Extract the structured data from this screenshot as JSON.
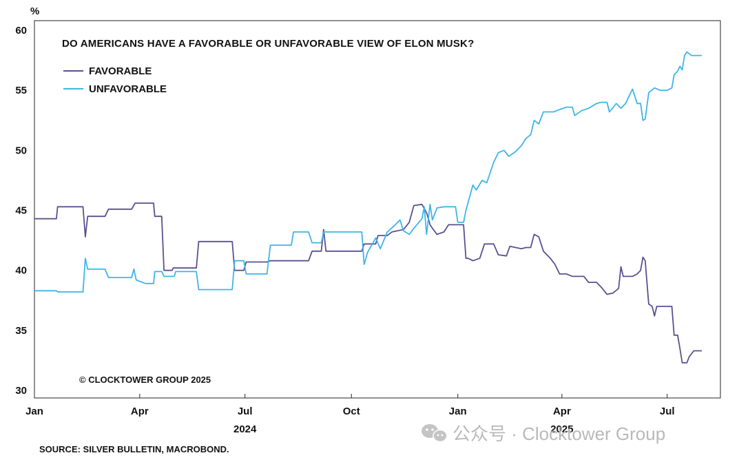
{
  "chart_data": {
    "type": "line",
    "title": "DO AMERICANS HAVE A FAVORABLE OR UNFAVORABLE VIEW OF ELON MUSK?",
    "ylabel": "%",
    "ylim": [
      30,
      60
    ],
    "y_ticks": [
      30,
      35,
      40,
      45,
      50,
      55,
      60
    ],
    "x_ticks": [
      {
        "label": "Jan",
        "date": "2024-01-01"
      },
      {
        "label": "Apr",
        "date": "2024-04-01"
      },
      {
        "label": "Jul",
        "date": "2024-07-01"
      },
      {
        "label": "Oct",
        "date": "2024-10-01"
      },
      {
        "label": "Jan",
        "date": "2025-01-01"
      },
      {
        "label": "Apr",
        "date": "2025-04-01"
      },
      {
        "label": "Jul",
        "date": "2025-07-01"
      }
    ],
    "year_labels": [
      {
        "label": "2024",
        "date": "2024-07-01"
      },
      {
        "label": "2025",
        "date": "2025-04-01"
      }
    ],
    "xlim": [
      "2024-01-01",
      "2025-08-16"
    ],
    "grid": false,
    "legend_position": "top-left",
    "note": "© CLOCKTOWER GROUP 2025",
    "source": "SOURCE: SILVER BULLETIN, MACROBOND.",
    "series": [
      {
        "name": "FAVORABLE",
        "color": "#5b4f8f",
        "points": [
          [
            "2024-01-01",
            44.3
          ],
          [
            "2024-01-20",
            44.3
          ],
          [
            "2024-01-21",
            45.3
          ],
          [
            "2024-02-12",
            45.3
          ],
          [
            "2024-02-14",
            42.8
          ],
          [
            "2024-02-16",
            44.5
          ],
          [
            "2024-03-02",
            44.5
          ],
          [
            "2024-03-05",
            45.1
          ],
          [
            "2024-03-25",
            45.1
          ],
          [
            "2024-03-28",
            45.6
          ],
          [
            "2024-04-13",
            45.6
          ],
          [
            "2024-04-14",
            44.5
          ],
          [
            "2024-04-20",
            44.5
          ],
          [
            "2024-04-22",
            40.0
          ],
          [
            "2024-04-29",
            40.0
          ],
          [
            "2024-04-30",
            40.2
          ],
          [
            "2024-05-20",
            40.2
          ],
          [
            "2024-05-22",
            42.4
          ],
          [
            "2024-06-20",
            42.4
          ],
          [
            "2024-06-22",
            40.0
          ],
          [
            "2024-06-30",
            40.0
          ],
          [
            "2024-07-02",
            40.7
          ],
          [
            "2024-07-20",
            40.7
          ],
          [
            "2024-07-23",
            40.8
          ],
          [
            "2024-08-10",
            40.8
          ],
          [
            "2024-08-12",
            40.8
          ],
          [
            "2024-08-25",
            40.8
          ],
          [
            "2024-08-28",
            41.6
          ],
          [
            "2024-09-05",
            41.6
          ],
          [
            "2024-09-07",
            43.4
          ],
          [
            "2024-09-09",
            41.6
          ],
          [
            "2024-10-10",
            41.6
          ],
          [
            "2024-10-12",
            42.2
          ],
          [
            "2024-10-22",
            42.2
          ],
          [
            "2024-10-24",
            42.9
          ],
          [
            "2024-11-01",
            42.9
          ],
          [
            "2024-11-05",
            43.2
          ],
          [
            "2024-11-15",
            43.4
          ],
          [
            "2024-11-20",
            44.0
          ],
          [
            "2024-11-24",
            45.4
          ],
          [
            "2024-12-01",
            45.5
          ],
          [
            "2024-12-05",
            44.8
          ],
          [
            "2024-12-08",
            43.8
          ],
          [
            "2024-12-10",
            43.5
          ],
          [
            "2024-12-14",
            43.0
          ],
          [
            "2024-12-20",
            43.2
          ],
          [
            "2024-12-24",
            43.8
          ],
          [
            "2024-12-30",
            43.8
          ],
          [
            "2025-01-01",
            43.8
          ],
          [
            "2025-01-06",
            43.8
          ],
          [
            "2025-01-08",
            41.0
          ],
          [
            "2025-01-10",
            41.0
          ],
          [
            "2025-01-14",
            40.8
          ],
          [
            "2025-01-20",
            41.0
          ],
          [
            "2025-01-24",
            42.2
          ],
          [
            "2025-02-01",
            42.2
          ],
          [
            "2025-02-05",
            41.3
          ],
          [
            "2025-02-12",
            41.2
          ],
          [
            "2025-02-15",
            42.0
          ],
          [
            "2025-02-25",
            41.8
          ],
          [
            "2025-03-01",
            41.9
          ],
          [
            "2025-03-05",
            41.9
          ],
          [
            "2025-03-08",
            43.0
          ],
          [
            "2025-03-12",
            42.8
          ],
          [
            "2025-03-16",
            41.6
          ],
          [
            "2025-03-22",
            41.0
          ],
          [
            "2025-03-26",
            40.5
          ],
          [
            "2025-03-30",
            39.7
          ],
          [
            "2025-04-05",
            39.7
          ],
          [
            "2025-04-10",
            39.5
          ],
          [
            "2025-04-20",
            39.5
          ],
          [
            "2025-04-24",
            39.0
          ],
          [
            "2025-05-01",
            39.0
          ],
          [
            "2025-05-05",
            38.6
          ],
          [
            "2025-05-10",
            38.0
          ],
          [
            "2025-05-15",
            38.1
          ],
          [
            "2025-05-20",
            38.5
          ],
          [
            "2025-05-22",
            40.3
          ],
          [
            "2025-05-24",
            39.5
          ],
          [
            "2025-06-01",
            39.5
          ],
          [
            "2025-06-05",
            39.7
          ],
          [
            "2025-06-08",
            40.0
          ],
          [
            "2025-06-10",
            41.1
          ],
          [
            "2025-06-12",
            40.8
          ],
          [
            "2025-06-15",
            37.2
          ],
          [
            "2025-06-18",
            37.0
          ],
          [
            "2025-06-20",
            36.2
          ],
          [
            "2025-06-22",
            37.0
          ],
          [
            "2025-07-05",
            37.0
          ],
          [
            "2025-07-07",
            34.6
          ],
          [
            "2025-07-10",
            34.6
          ],
          [
            "2025-07-12",
            33.5
          ],
          [
            "2025-07-14",
            32.3
          ],
          [
            "2025-07-18",
            32.3
          ],
          [
            "2025-07-20",
            32.8
          ],
          [
            "2025-07-24",
            33.3
          ],
          [
            "2025-07-31",
            33.3
          ]
        ]
      },
      {
        "name": "UNFAVORABLE",
        "color": "#3db5e6",
        "points": [
          [
            "2024-01-01",
            38.3
          ],
          [
            "2024-01-20",
            38.3
          ],
          [
            "2024-01-21",
            38.2
          ],
          [
            "2024-02-12",
            38.2
          ],
          [
            "2024-02-14",
            41.0
          ],
          [
            "2024-02-16",
            40.1
          ],
          [
            "2024-03-02",
            40.1
          ],
          [
            "2024-03-05",
            39.4
          ],
          [
            "2024-03-25",
            39.4
          ],
          [
            "2024-03-27",
            40.1
          ],
          [
            "2024-03-29",
            39.2
          ],
          [
            "2024-04-06",
            38.9
          ],
          [
            "2024-04-13",
            38.9
          ],
          [
            "2024-04-14",
            39.9
          ],
          [
            "2024-04-20",
            39.9
          ],
          [
            "2024-04-22",
            39.5
          ],
          [
            "2024-05-01",
            39.5
          ],
          [
            "2024-05-02",
            39.9
          ],
          [
            "2024-05-20",
            39.9
          ],
          [
            "2024-05-22",
            38.4
          ],
          [
            "2024-06-20",
            38.4
          ],
          [
            "2024-06-22",
            40.8
          ],
          [
            "2024-06-30",
            40.8
          ],
          [
            "2024-07-02",
            39.7
          ],
          [
            "2024-07-20",
            39.7
          ],
          [
            "2024-07-23",
            42.1
          ],
          [
            "2024-08-10",
            42.1
          ],
          [
            "2024-08-12",
            43.2
          ],
          [
            "2024-08-25",
            43.2
          ],
          [
            "2024-08-28",
            42.3
          ],
          [
            "2024-09-05",
            42.3
          ],
          [
            "2024-09-07",
            43.2
          ],
          [
            "2024-10-10",
            43.2
          ],
          [
            "2024-10-12",
            40.5
          ],
          [
            "2024-10-15",
            41.5
          ],
          [
            "2024-10-22",
            42.7
          ],
          [
            "2024-10-26",
            41.8
          ],
          [
            "2024-11-01",
            43.2
          ],
          [
            "2024-11-08",
            43.8
          ],
          [
            "2024-11-12",
            44.2
          ],
          [
            "2024-11-15",
            43.3
          ],
          [
            "2024-11-20",
            43.0
          ],
          [
            "2024-11-24",
            43.5
          ],
          [
            "2024-12-01",
            44.3
          ],
          [
            "2024-12-03",
            45.3
          ],
          [
            "2024-12-05",
            43.0
          ],
          [
            "2024-12-08",
            45.5
          ],
          [
            "2024-12-10",
            44.2
          ],
          [
            "2024-12-14",
            45.2
          ],
          [
            "2024-12-20",
            45.3
          ],
          [
            "2024-12-30",
            45.3
          ],
          [
            "2025-01-01",
            44.0
          ],
          [
            "2025-01-06",
            44.0
          ],
          [
            "2025-01-08",
            45.0
          ],
          [
            "2025-01-14",
            47.1
          ],
          [
            "2025-01-17",
            46.7
          ],
          [
            "2025-01-22",
            47.5
          ],
          [
            "2025-01-26",
            47.3
          ],
          [
            "2025-02-01",
            49.0
          ],
          [
            "2025-02-05",
            49.8
          ],
          [
            "2025-02-10",
            50.0
          ],
          [
            "2025-02-14",
            49.5
          ],
          [
            "2025-02-20",
            49.9
          ],
          [
            "2025-02-25",
            50.4
          ],
          [
            "2025-03-01",
            51.0
          ],
          [
            "2025-03-05",
            51.3
          ],
          [
            "2025-03-08",
            52.5
          ],
          [
            "2025-03-12",
            52.2
          ],
          [
            "2025-03-16",
            53.2
          ],
          [
            "2025-03-25",
            53.2
          ],
          [
            "2025-03-30",
            53.4
          ],
          [
            "2025-04-05",
            53.6
          ],
          [
            "2025-04-10",
            53.6
          ],
          [
            "2025-04-12",
            52.9
          ],
          [
            "2025-04-18",
            53.3
          ],
          [
            "2025-04-24",
            53.5
          ],
          [
            "2025-05-01",
            53.9
          ],
          [
            "2025-05-05",
            54.0
          ],
          [
            "2025-05-10",
            54.0
          ],
          [
            "2025-05-12",
            53.2
          ],
          [
            "2025-05-18",
            53.9
          ],
          [
            "2025-05-22",
            53.5
          ],
          [
            "2025-05-26",
            53.9
          ],
          [
            "2025-06-01",
            55.1
          ],
          [
            "2025-06-05",
            53.9
          ],
          [
            "2025-06-08",
            53.9
          ],
          [
            "2025-06-10",
            52.5
          ],
          [
            "2025-06-12",
            52.6
          ],
          [
            "2025-06-15",
            54.8
          ],
          [
            "2025-06-20",
            55.2
          ],
          [
            "2025-06-25",
            55.0
          ],
          [
            "2025-07-01",
            55.0
          ],
          [
            "2025-07-05",
            55.2
          ],
          [
            "2025-07-07",
            56.3
          ],
          [
            "2025-07-10",
            56.6
          ],
          [
            "2025-07-12",
            57.0
          ],
          [
            "2025-07-14",
            56.7
          ],
          [
            "2025-07-16",
            57.9
          ],
          [
            "2025-07-18",
            58.2
          ],
          [
            "2025-07-22",
            57.9
          ],
          [
            "2025-07-31",
            57.9
          ]
        ]
      }
    ]
  },
  "watermark": {
    "text": "公众号 · Clocktower Group"
  }
}
